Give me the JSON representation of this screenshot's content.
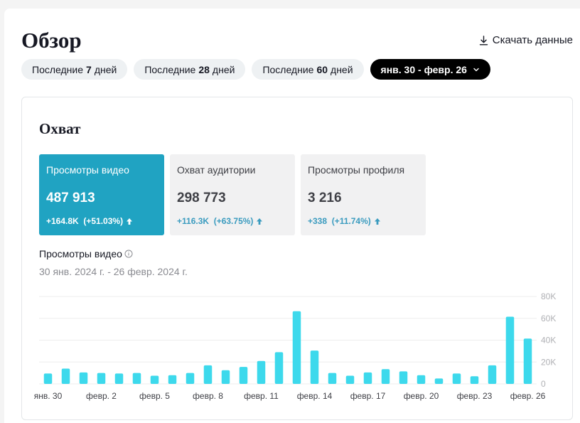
{
  "header": {
    "title": "Обзор",
    "download_label": "Скачать данные"
  },
  "filters": [
    {
      "prefix": "Последние",
      "bold": "7",
      "suffix": "дней"
    },
    {
      "prefix": "Последние",
      "bold": "28",
      "suffix": "дней"
    },
    {
      "prefix": "Последние",
      "bold": "60",
      "suffix": "дней"
    },
    {
      "label": "янв. 30 - февр. 26",
      "active": true
    }
  ],
  "reach": {
    "title": "Охват",
    "metrics": [
      {
        "label": "Просмотры видео",
        "value": "487 913",
        "delta": "+164.8K  (+51.03%)",
        "active": true
      },
      {
        "label": "Охват аудитории",
        "value": "298 773",
        "delta": "+116.3K  (+63.75%)"
      },
      {
        "label": "Просмотры профиля",
        "value": "3 216",
        "delta": "+338  (+11.74%)"
      }
    ],
    "chart_title": "Просмотры видео",
    "chart_range": "30 янв. 2024 г. - 26 февр. 2024 г."
  },
  "colors": {
    "accent": "#20a3c2",
    "bar": "#3dd9ec",
    "delta": "#3a9bbf"
  },
  "chart_data": {
    "type": "bar",
    "x": [
      "янв. 30",
      "янв. 31",
      "февр. 1",
      "февр. 2",
      "февр. 3",
      "февр. 4",
      "февр. 5",
      "февр. 6",
      "февр. 7",
      "февр. 8",
      "февр. 9",
      "февр. 10",
      "февр. 11",
      "февр. 12",
      "февр. 13",
      "февр. 14",
      "февр. 15",
      "февр. 16",
      "февр. 17",
      "февр. 18",
      "февр. 19",
      "февр. 20",
      "февр. 21",
      "февр. 22",
      "февр. 23",
      "февр. 24",
      "февр. 25",
      "февр. 26"
    ],
    "tick_labels": [
      "янв. 30",
      "февр. 2",
      "февр. 5",
      "февр. 8",
      "февр. 11",
      "февр. 14",
      "февр. 17",
      "февр. 20",
      "февр. 23",
      "февр. 26"
    ],
    "tick_indices": [
      0,
      3,
      6,
      9,
      12,
      15,
      18,
      21,
      24,
      27
    ],
    "values": [
      9500,
      14000,
      10500,
      10000,
      9500,
      10000,
      7500,
      8000,
      10000,
      17000,
      12500,
      15500,
      21000,
      29000,
      66500,
      30500,
      10000,
      7500,
      10500,
      13500,
      11500,
      8000,
      5000,
      9500,
      7000,
      17000,
      61500,
      41500
    ],
    "ylim": [
      0,
      80000
    ],
    "yticks": [
      "0",
      "20K",
      "40K",
      "60K",
      "80K"
    ],
    "ytick_values": [
      0,
      20000,
      40000,
      60000,
      80000
    ],
    "grid": true
  }
}
